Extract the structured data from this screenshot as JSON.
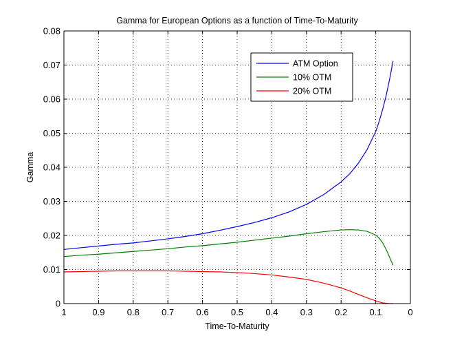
{
  "chart_data": {
    "type": "line",
    "title": "Gamma for European Options as a function of Time-To-Maturity",
    "xlabel": "Time-To-Maturity",
    "ylabel": "Gamma",
    "x_reversed": true,
    "xlim": [
      0,
      1
    ],
    "ylim": [
      0,
      0.08
    ],
    "xticks": [
      1,
      0.9,
      0.8,
      0.7,
      0.6,
      0.5,
      0.4,
      0.3,
      0.2,
      0.1,
      0
    ],
    "xtick_labels": [
      "1",
      "0.9",
      "0.8",
      "0.7",
      "0.6",
      "0.5",
      "0.4",
      "0.3",
      "0.2",
      "0.1",
      "0"
    ],
    "yticks": [
      0,
      0.01,
      0.02,
      0.03,
      0.04,
      0.05,
      0.06,
      0.07,
      0.08
    ],
    "ytick_labels": [
      "0",
      "0.01",
      "0.02",
      "0.03",
      "0.04",
      "0.05",
      "0.06",
      "0.07",
      "0.08"
    ],
    "grid": true,
    "grid_style": "dotted",
    "legend_position": "top-right",
    "x": [
      1.0,
      0.95,
      0.9,
      0.85,
      0.8,
      0.75,
      0.7,
      0.65,
      0.6,
      0.55,
      0.5,
      0.45,
      0.4,
      0.35,
      0.3,
      0.25,
      0.2,
      0.175,
      0.15,
      0.125,
      0.1,
      0.09,
      0.08,
      0.07,
      0.06,
      0.05
    ],
    "series": [
      {
        "name": "ATM Option",
        "color": "#0000ff",
        "values": [
          0.0159,
          0.0164,
          0.0169,
          0.0174,
          0.0178,
          0.0184,
          0.019,
          0.0197,
          0.0205,
          0.0215,
          0.0226,
          0.0238,
          0.0252,
          0.0269,
          0.0291,
          0.032,
          0.0357,
          0.0381,
          0.0412,
          0.0452,
          0.0505,
          0.0535,
          0.057,
          0.061,
          0.0658,
          0.0712
        ]
      },
      {
        "name": "10% OTM",
        "color": "#008000",
        "values": [
          0.0138,
          0.0142,
          0.0145,
          0.0149,
          0.0153,
          0.0157,
          0.0161,
          0.0166,
          0.017,
          0.0175,
          0.018,
          0.0186,
          0.0192,
          0.0198,
          0.0205,
          0.0211,
          0.0216,
          0.0217,
          0.0216,
          0.0212,
          0.0201,
          0.0192,
          0.0178,
          0.0159,
          0.0136,
          0.0112
        ]
      },
      {
        "name": "20% OTM",
        "color": "#ff0000",
        "values": [
          0.0093,
          0.0094,
          0.0095,
          0.0096,
          0.0096,
          0.0096,
          0.0096,
          0.0095,
          0.0094,
          0.0093,
          0.0091,
          0.0088,
          0.0084,
          0.0078,
          0.0071,
          0.006,
          0.0046,
          0.0037,
          0.0027,
          0.0017,
          0.0008,
          0.0005,
          0.0002,
          0.0001,
          0.0,
          0.0
        ]
      }
    ]
  }
}
